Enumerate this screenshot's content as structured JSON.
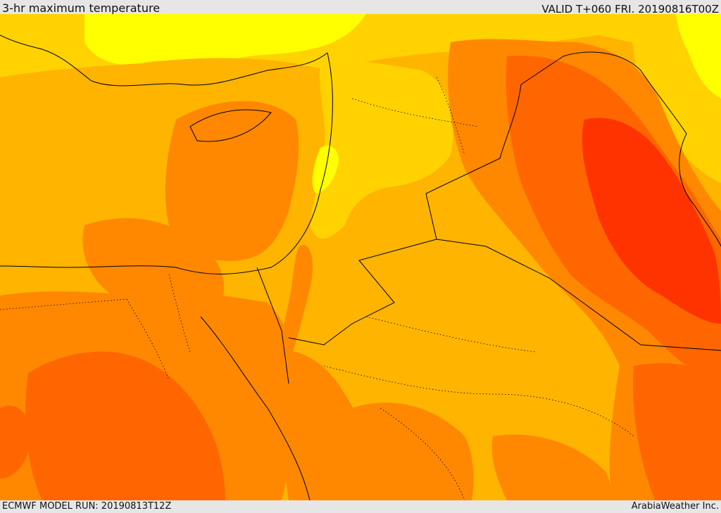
{
  "header": {
    "title": "3-hr maximum temperature",
    "valid": "VALID T+060 FRI. 20190816T00Z"
  },
  "footer": {
    "model_run": "ECMWF MODEL RUN: 20190813T12Z",
    "credit": "ArabiaWeather Inc."
  },
  "palette": {
    "coolest": "#ffff00",
    "cool": "#ffdd00",
    "warm": "#ffb400",
    "hot": "#ff8800",
    "hotter": "#ff6600",
    "hottest": "#ff3300",
    "borders": "#000000"
  }
}
